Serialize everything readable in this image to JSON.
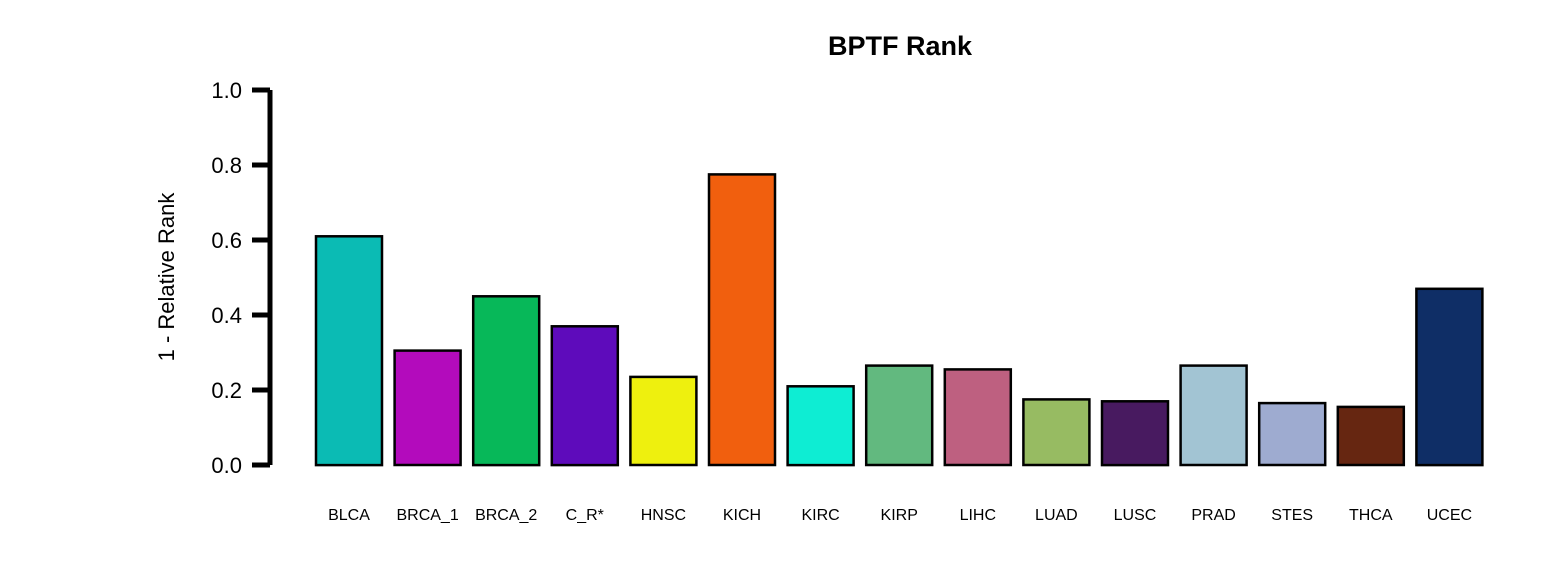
{
  "chart_data": {
    "type": "bar",
    "title": "BPTF Rank",
    "xlabel": "",
    "ylabel": "1 - Relative Rank",
    "ylim": [
      0,
      1
    ],
    "yticks": [
      "0.0",
      "0.2",
      "0.4",
      "0.6",
      "0.8",
      "1.0"
    ],
    "grid": false,
    "legend": "none",
    "categories": [
      "BLCA",
      "BRCA_1",
      "BRCA_2",
      "C_R*",
      "HNSC",
      "KICH",
      "KIRC",
      "KIRP",
      "LIHC",
      "LUAD",
      "LUSC",
      "PRAD",
      "STES",
      "THCA",
      "UCEC"
    ],
    "values": [
      0.61,
      0.305,
      0.45,
      0.37,
      0.235,
      0.775,
      0.21,
      0.265,
      0.255,
      0.175,
      0.17,
      0.265,
      0.165,
      0.155,
      0.47
    ],
    "colors": [
      "#0BBBB4",
      "#B30BBC",
      "#07B859",
      "#5E0BBB",
      "#EEF00E",
      "#F15F0E",
      "#0EEDD3",
      "#62B97F",
      "#BE6080",
      "#97BB62",
      "#481A60",
      "#A2C4D3",
      "#9EABD0",
      "#662611",
      "#0F2E66"
    ]
  }
}
